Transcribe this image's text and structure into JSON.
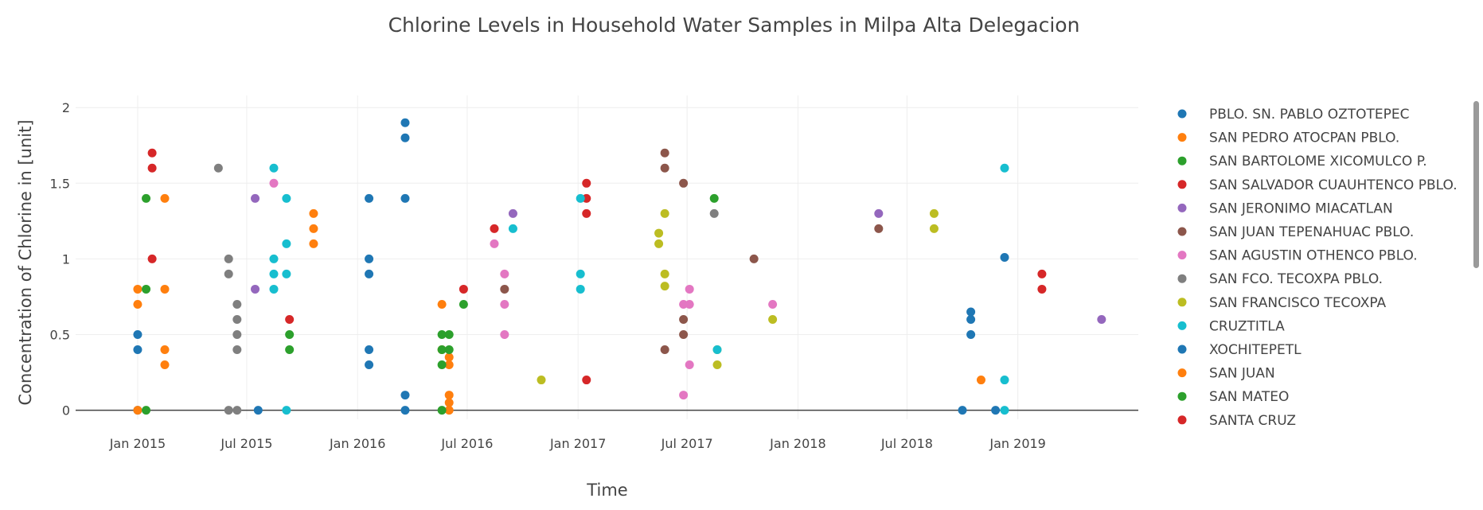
{
  "chart_data": {
    "type": "scatter",
    "title": "Chlorine Levels in Household Water Samples in Milpa Alta Delegacion",
    "xlabel": "Time",
    "ylabel": "Concentration of Chlorine in [unit]",
    "x_ticks": [
      "2015-01-01",
      "2015-07-01",
      "2016-01-01",
      "2016-07-01",
      "2017-01-01",
      "2017-07-01",
      "2018-01-01",
      "2018-07-01",
      "2019-01-01"
    ],
    "x_tick_labels": [
      "Jan 2015",
      "Jul 2015",
      "Jan 2016",
      "Jul 2016",
      "Jan 2017",
      "Jul 2017",
      "Jan 2018",
      "Jul 2018",
      "Jan 2019"
    ],
    "xlim": [
      "2014-09-20",
      "2019-07-20"
    ],
    "y_ticks": [
      0,
      0.5,
      1,
      1.5,
      2
    ],
    "y_tick_labels": [
      "0",
      "0.5",
      "1",
      "1.5",
      "2"
    ],
    "ylim": [
      -0.06,
      2.08
    ],
    "grid": true,
    "legend_position": "right",
    "series": [
      {
        "name": "PBLO. SN. PABLO OZTOTEPEC",
        "color": "#1f77b4",
        "points": [
          [
            "2015-01-01",
            0.5
          ],
          [
            "2015-01-01",
            0.4
          ],
          [
            "2015-01-01",
            0
          ],
          [
            "2015-07-20",
            0
          ],
          [
            "2016-01-20",
            1.4
          ],
          [
            "2016-01-20",
            1
          ],
          [
            "2016-01-20",
            0.9
          ],
          [
            "2016-01-20",
            0.4
          ],
          [
            "2016-01-20",
            0.3
          ],
          [
            "2016-03-20",
            1.9
          ],
          [
            "2016-03-20",
            1.8
          ],
          [
            "2016-03-20",
            1.4
          ],
          [
            "2016-03-20",
            0.1
          ],
          [
            "2016-03-20",
            0
          ]
        ]
      },
      {
        "name": "SAN PEDRO ATOCPAN PBLO.",
        "color": "#ff7f0e",
        "points": [
          [
            "2015-01-01",
            0.8
          ],
          [
            "2015-01-01",
            0.7
          ],
          [
            "2015-01-01",
            0
          ],
          [
            "2015-02-15",
            1.4
          ],
          [
            "2015-02-15",
            0.8
          ],
          [
            "2015-02-15",
            0.4
          ],
          [
            "2015-02-15",
            0.3
          ],
          [
            "2015-10-20",
            1.3
          ],
          [
            "2015-10-20",
            1.2
          ],
          [
            "2015-10-20",
            1.1
          ],
          [
            "2016-05-20",
            0.7
          ],
          [
            "2016-05-20",
            0.4
          ],
          [
            "2016-06-01",
            0.35
          ],
          [
            "2016-06-01",
            0.3
          ],
          [
            "2016-06-01",
            0.1
          ],
          [
            "2016-06-01",
            0.05
          ],
          [
            "2016-06-01",
            0
          ]
        ]
      },
      {
        "name": "SAN BARTOLOME XICOMULCO P.",
        "color": "#2ca02c",
        "points": [
          [
            "2015-01-15",
            1.4
          ],
          [
            "2015-01-15",
            0.8
          ],
          [
            "2015-01-15",
            0
          ],
          [
            "2015-09-10",
            0.5
          ],
          [
            "2015-09-10",
            0.4
          ],
          [
            "2016-05-20",
            0.5
          ],
          [
            "2016-05-20",
            0.4
          ],
          [
            "2016-05-20",
            0.3
          ],
          [
            "2016-05-20",
            0
          ],
          [
            "2016-06-01",
            0.5
          ],
          [
            "2016-06-01",
            0.4
          ],
          [
            "2016-06-25",
            0.7
          ]
        ]
      },
      {
        "name": "SAN SALVADOR CUAUHTENCO PBLO.",
        "color": "#d62728",
        "points": [
          [
            "2015-01-25",
            1.7
          ],
          [
            "2015-01-25",
            1.6
          ],
          [
            "2015-01-25",
            1
          ],
          [
            "2015-09-10",
            0.6
          ],
          [
            "2016-06-25",
            0.8
          ],
          [
            "2016-08-15",
            1.2
          ],
          [
            "2017-01-15",
            1.5
          ],
          [
            "2017-01-15",
            1.4
          ],
          [
            "2017-01-15",
            1.3
          ],
          [
            "2017-01-15",
            0.2
          ]
        ]
      },
      {
        "name": "SAN JERONIMO MIACATLAN",
        "color": "#9467bd",
        "points": [
          [
            "2015-07-15",
            1.4
          ],
          [
            "2015-07-15",
            0.8
          ],
          [
            "2016-09-15",
            1.3
          ],
          [
            "2018-05-15",
            1.3
          ],
          [
            "2019-05-20",
            0.6
          ]
        ]
      },
      {
        "name": "SAN JUAN TEPENAHUAC PBLO.",
        "color": "#8c564b",
        "points": [
          [
            "2016-09-01",
            0.8
          ],
          [
            "2017-05-25",
            1.7
          ],
          [
            "2017-05-25",
            1.6
          ],
          [
            "2017-05-25",
            0.4
          ],
          [
            "2017-06-25",
            1.5
          ],
          [
            "2017-06-25",
            0.6
          ],
          [
            "2017-06-25",
            0.5
          ],
          [
            "2017-10-20",
            1
          ],
          [
            "2018-05-15",
            1.2
          ]
        ]
      },
      {
        "name": "SAN AGUSTIN OTHENCO PBLO.",
        "color": "#e377c2",
        "points": [
          [
            "2015-08-15",
            1.5
          ],
          [
            "2016-08-15",
            1.1
          ],
          [
            "2016-09-01",
            0.9
          ],
          [
            "2016-09-01",
            0.7
          ],
          [
            "2016-09-01",
            0.5
          ],
          [
            "2017-06-25",
            0.7
          ],
          [
            "2017-06-25",
            0.1
          ],
          [
            "2017-07-05",
            0.8
          ],
          [
            "2017-07-05",
            0.7
          ],
          [
            "2017-07-05",
            0.3
          ],
          [
            "2017-11-20",
            0.7
          ]
        ]
      },
      {
        "name": "SAN FCO. TECOXPA PBLO.",
        "color": "#7f7f7f",
        "points": [
          [
            "2015-05-15",
            1.6
          ],
          [
            "2015-06-01",
            1
          ],
          [
            "2015-06-01",
            0.9
          ],
          [
            "2015-06-01",
            0
          ],
          [
            "2015-06-15",
            0.7
          ],
          [
            "2015-06-15",
            0.6
          ],
          [
            "2015-06-15",
            0.5
          ],
          [
            "2015-06-15",
            0.4
          ],
          [
            "2015-06-15",
            0
          ],
          [
            "2017-08-15",
            1.3
          ]
        ]
      },
      {
        "name": "SAN FRANCISCO TECOXPA",
        "color": "#bcbd22",
        "points": [
          [
            "2016-11-01",
            0.2
          ],
          [
            "2017-05-15",
            1.17
          ],
          [
            "2017-05-15",
            1.1
          ],
          [
            "2017-05-25",
            1.3
          ],
          [
            "2017-05-25",
            0.9
          ],
          [
            "2017-05-25",
            0.82
          ],
          [
            "2017-08-20",
            0.4
          ],
          [
            "2017-08-20",
            0.3
          ],
          [
            "2017-11-20",
            0.6
          ],
          [
            "2018-08-15",
            1.3
          ],
          [
            "2018-08-15",
            1.2
          ]
        ]
      },
      {
        "name": "CRUZTITLA",
        "color": "#17becf",
        "points": [
          [
            "2015-08-15",
            1.6
          ],
          [
            "2015-08-15",
            1
          ],
          [
            "2015-08-15",
            0.9
          ],
          [
            "2015-08-15",
            0.8
          ],
          [
            "2015-09-05",
            1.4
          ],
          [
            "2015-09-05",
            1.1
          ],
          [
            "2015-09-05",
            0.9
          ],
          [
            "2015-09-05",
            0
          ],
          [
            "2016-09-15",
            1.2
          ],
          [
            "2017-01-05",
            1.4
          ],
          [
            "2017-01-05",
            0.9
          ],
          [
            "2017-01-05",
            0.8
          ],
          [
            "2017-08-20",
            0.4
          ],
          [
            "2018-12-10",
            1.6
          ],
          [
            "2018-12-10",
            0.2
          ],
          [
            "2018-12-10",
            0
          ]
        ]
      },
      {
        "name": "XOCHITEPETL",
        "color": "#1f77b4",
        "points": [
          [
            "2018-10-15",
            0.65
          ],
          [
            "2018-10-15",
            0.6
          ],
          [
            "2018-10-15",
            0.5
          ],
          [
            "2018-10-01",
            0
          ],
          [
            "2018-11-25",
            0
          ],
          [
            "2018-12-10",
            1.01
          ]
        ]
      },
      {
        "name": "SAN JUAN",
        "color": "#ff7f0e",
        "points": [
          [
            "2018-11-01",
            0.2
          ]
        ]
      },
      {
        "name": "SAN MATEO",
        "color": "#2ca02c",
        "points": [
          [
            "2017-08-15",
            1.4
          ]
        ]
      },
      {
        "name": "SANTA CRUZ",
        "color": "#d62728",
        "points": [
          [
            "2019-02-10",
            0.9
          ],
          [
            "2019-02-10",
            0.8
          ]
        ]
      }
    ]
  }
}
